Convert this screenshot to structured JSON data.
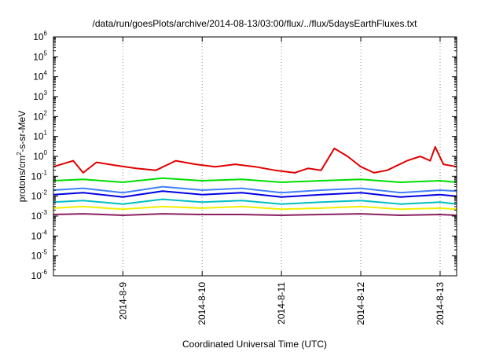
{
  "chart_data": {
    "type": "line",
    "title": "/data/run/goesPlots/archive/2014-08-13/03:00/flux/../flux/5daysEarthFluxes.txt",
    "xlabel": "Coordinated Universal Time (UTC)",
    "ylabel": {
      "pre": "protons/cm",
      "sup": "2",
      "post": "-s-sr-MeV"
    },
    "yscale": "log",
    "ylim": [
      1e-06,
      1000000.0
    ],
    "y_ticks": [
      {
        "exp": -6,
        "label_base": "10",
        "label_exp": "-6"
      },
      {
        "exp": -5,
        "label_base": "10",
        "label_exp": "-5"
      },
      {
        "exp": -4,
        "label_base": "10",
        "label_exp": "-4"
      },
      {
        "exp": -3,
        "label_base": "10",
        "label_exp": "-3"
      },
      {
        "exp": -2,
        "label_base": "10",
        "label_exp": "-2"
      },
      {
        "exp": -1,
        "label_base": "10",
        "label_exp": "-1"
      },
      {
        "exp": 0,
        "label_base": "10",
        "label_exp": "0"
      },
      {
        "exp": 1,
        "label_base": "10",
        "label_exp": "1"
      },
      {
        "exp": 2,
        "label_base": "10",
        "label_exp": "2"
      },
      {
        "exp": 3,
        "label_base": "10",
        "label_exp": "3"
      },
      {
        "exp": 4,
        "label_base": "10",
        "label_exp": "4"
      },
      {
        "exp": 5,
        "label_base": "10",
        "label_exp": "5"
      },
      {
        "exp": 6,
        "label_base": "10",
        "label_exp": "6"
      }
    ],
    "xlim": [
      "2014-08-08 03:00",
      "2014-08-13 05:00"
    ],
    "x_ticks": [
      {
        "date": "2014-08-09 00:00",
        "label": "2014-8-9"
      },
      {
        "date": "2014-08-10 00:00",
        "label": "2014-8-10"
      },
      {
        "date": "2014-08-11 00:00",
        "label": "2014-8-11"
      },
      {
        "date": "2014-08-12 00:00",
        "label": "2014-8-12"
      },
      {
        "date": "2014-08-13 00:00",
        "label": "2014-8-13"
      }
    ],
    "grid": {
      "vertical": true,
      "horizontal": false,
      "style": "dotted"
    },
    "legend": "none",
    "series": [
      {
        "color": "#e00000",
        "x": [
          "2014-08-08 03:00",
          "2014-08-08 09:00",
          "2014-08-08 12:00",
          "2014-08-08 16:00",
          "2014-08-08 22:00",
          "2014-08-09 04:00",
          "2014-08-09 10:00",
          "2014-08-09 16:00",
          "2014-08-09 22:00",
          "2014-08-10 04:00",
          "2014-08-10 10:00",
          "2014-08-10 16:00",
          "2014-08-10 22:00",
          "2014-08-11 04:00",
          "2014-08-11 08:00",
          "2014-08-11 12:00",
          "2014-08-11 16:00",
          "2014-08-11 20:00",
          "2014-08-12 00:00",
          "2014-08-12 04:00",
          "2014-08-12 08:00",
          "2014-08-12 14:00",
          "2014-08-12 18:00",
          "2014-08-12 21:00",
          "2014-08-12 22:30",
          "2014-08-13 01:00",
          "2014-08-13 05:00"
        ],
        "y": [
          0.3,
          0.6,
          0.15,
          0.5,
          0.35,
          0.25,
          0.2,
          0.6,
          0.4,
          0.3,
          0.4,
          0.3,
          0.2,
          0.15,
          0.25,
          0.2,
          2.5,
          1.0,
          0.3,
          0.15,
          0.2,
          0.6,
          1.0,
          0.6,
          3.0,
          0.4,
          0.3
        ]
      },
      {
        "color": "#00dd00",
        "x": [
          "2014-08-08 03:00",
          "2014-08-08 12:00",
          "2014-08-09 00:00",
          "2014-08-09 12:00",
          "2014-08-10 00:00",
          "2014-08-10 12:00",
          "2014-08-11 00:00",
          "2014-08-11 12:00",
          "2014-08-12 00:00",
          "2014-08-12 12:00",
          "2014-08-13 00:00",
          "2014-08-13 05:00"
        ],
        "y": [
          0.06,
          0.07,
          0.05,
          0.08,
          0.06,
          0.07,
          0.05,
          0.06,
          0.07,
          0.05,
          0.06,
          0.05
        ]
      },
      {
        "color": "#00c0c0",
        "x": [
          "2014-08-08 03:00",
          "2014-08-08 12:00",
          "2014-08-09 00:00",
          "2014-08-09 12:00",
          "2014-08-10 00:00",
          "2014-08-10 12:00",
          "2014-08-11 00:00",
          "2014-08-11 12:00",
          "2014-08-12 00:00",
          "2014-08-12 12:00",
          "2014-08-13 00:00",
          "2014-08-13 05:00"
        ],
        "y": [
          0.005,
          0.006,
          0.004,
          0.007,
          0.005,
          0.006,
          0.004,
          0.005,
          0.006,
          0.004,
          0.005,
          0.004
        ]
      },
      {
        "color": "#4080ff",
        "x": [
          "2014-08-08 03:00",
          "2014-08-08 12:00",
          "2014-08-09 00:00",
          "2014-08-09 12:00",
          "2014-08-10 00:00",
          "2014-08-10 12:00",
          "2014-08-11 00:00",
          "2014-08-11 12:00",
          "2014-08-12 00:00",
          "2014-08-12 12:00",
          "2014-08-13 00:00",
          "2014-08-13 05:00"
        ],
        "y": [
          0.02,
          0.025,
          0.015,
          0.03,
          0.02,
          0.025,
          0.015,
          0.02,
          0.025,
          0.015,
          0.02,
          0.018
        ]
      },
      {
        "color": "#0000e0",
        "x": [
          "2014-08-08 03:00",
          "2014-08-08 12:00",
          "2014-08-09 00:00",
          "2014-08-09 12:00",
          "2014-08-10 00:00",
          "2014-08-10 12:00",
          "2014-08-11 00:00",
          "2014-08-11 12:00",
          "2014-08-12 00:00",
          "2014-08-12 12:00",
          "2014-08-13 00:00",
          "2014-08-13 05:00"
        ],
        "y": [
          0.012,
          0.015,
          0.009,
          0.018,
          0.012,
          0.015,
          0.009,
          0.012,
          0.015,
          0.009,
          0.012,
          0.01
        ]
      },
      {
        "color": "#f0f000",
        "x": [
          "2014-08-08 03:00",
          "2014-08-08 12:00",
          "2014-08-09 00:00",
          "2014-08-09 12:00",
          "2014-08-10 00:00",
          "2014-08-10 12:00",
          "2014-08-11 00:00",
          "2014-08-11 12:00",
          "2014-08-12 00:00",
          "2014-08-12 12:00",
          "2014-08-13 00:00",
          "2014-08-13 05:00"
        ],
        "y": [
          0.0025,
          0.003,
          0.0022,
          0.003,
          0.0025,
          0.003,
          0.0022,
          0.0025,
          0.003,
          0.0022,
          0.0025,
          0.0022
        ]
      },
      {
        "color": "#8b2060",
        "x": [
          "2014-08-08 03:00",
          "2014-08-08 12:00",
          "2014-08-09 00:00",
          "2014-08-09 12:00",
          "2014-08-10 00:00",
          "2014-08-10 12:00",
          "2014-08-11 00:00",
          "2014-08-11 12:00",
          "2014-08-12 00:00",
          "2014-08-12 12:00",
          "2014-08-13 00:00",
          "2014-08-13 05:00"
        ],
        "y": [
          0.0012,
          0.0013,
          0.0011,
          0.0013,
          0.0012,
          0.0012,
          0.0011,
          0.0012,
          0.0013,
          0.0011,
          0.0012,
          0.0011
        ]
      }
    ]
  }
}
